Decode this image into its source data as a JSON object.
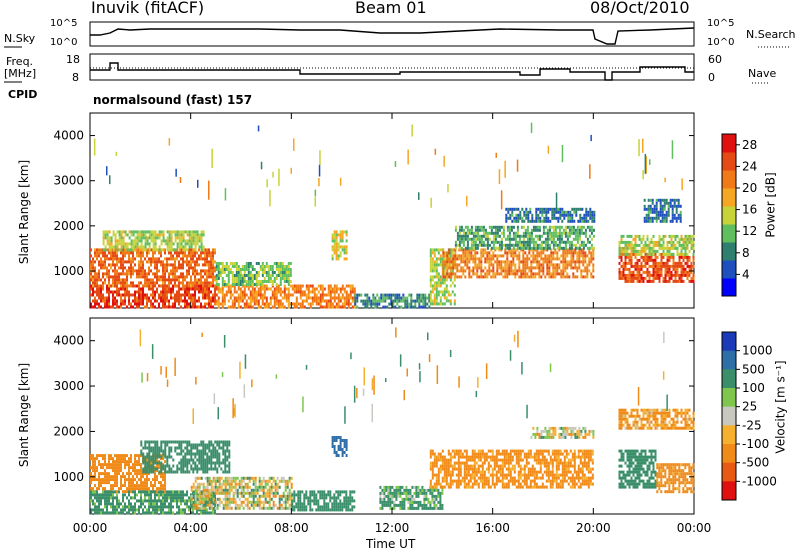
{
  "header": {
    "station": "Inuvik (fitACF)",
    "beam": "Beam 01",
    "date": "08/Oct/2010"
  },
  "status_panel": {
    "nsky_label": "N.Sky",
    "nsearch_label": "N.Search",
    "freq_label_line1": "Freq.",
    "freq_label_line2": "[MHz]",
    "nave_label": "Nave",
    "cpid_label": "CPID",
    "cpid_value": "normalsound (fast) 157",
    "noise_ticks": [
      "10^5",
      "10^0"
    ],
    "freq_ticks": [
      "18",
      "8"
    ],
    "nave_ticks": [
      "60",
      "0"
    ]
  },
  "colors": {
    "power_scale": [
      "#0000ff",
      "#1f4fbf",
      "#2f7f6f",
      "#5fbf5f",
      "#c8d33a",
      "#f5a623",
      "#f07a18",
      "#e64a14",
      "#e01010"
    ],
    "velocity_scale": [
      "#1a3ab8",
      "#2f6fa8",
      "#3a8f6a",
      "#7fc64f",
      "#c8c8c0",
      "#f5b030",
      "#f08a18",
      "#e85a14",
      "#e01010"
    ]
  },
  "chart_data": [
    {
      "type": "heatmap",
      "name": "power",
      "xlabel": "Time UT",
      "ylabel": "Slant Range [km]",
      "x_ticks": [
        "00:00",
        "04:00",
        "08:00",
        "12:00",
        "16:00",
        "20:00",
        "00:00"
      ],
      "y_ticks": [
        1000,
        2000,
        3000,
        4000
      ],
      "ylim": [
        180,
        4500
      ],
      "colorbar_label": "Power [dB]",
      "colorbar_ticks": [
        4,
        8,
        12,
        16,
        20,
        24,
        28
      ],
      "blobs": [
        {
          "t0": 0.0,
          "t1": 5.0,
          "r0": 200,
          "r1": 700,
          "v": 27
        },
        {
          "t0": 0.0,
          "t1": 5.0,
          "r0": 700,
          "r1": 1500,
          "v": 24
        },
        {
          "t0": 0.5,
          "t1": 4.5,
          "r0": 1500,
          "r1": 1900,
          "v": 14
        },
        {
          "t0": 5.0,
          "t1": 10.5,
          "r0": 200,
          "r1": 700,
          "v": 22
        },
        {
          "t0": 5.0,
          "t1": 8.0,
          "r0": 700,
          "r1": 1200,
          "v": 12
        },
        {
          "t0": 9.6,
          "t1": 10.2,
          "r0": 1300,
          "r1": 1900,
          "v": 16
        },
        {
          "t0": 10.5,
          "t1": 13.5,
          "r0": 200,
          "r1": 500,
          "v": 8
        },
        {
          "t0": 13.5,
          "t1": 14.5,
          "r0": 300,
          "r1": 1500,
          "v": 14
        },
        {
          "t0": 14.0,
          "t1": 20.0,
          "r0": 900,
          "r1": 1500,
          "v": 22
        },
        {
          "t0": 14.5,
          "t1": 20.0,
          "r0": 1500,
          "r1": 2000,
          "v": 10
        },
        {
          "t0": 16.5,
          "t1": 20.0,
          "r0": 2100,
          "r1": 2400,
          "v": 6
        },
        {
          "t0": 21.0,
          "t1": 24.0,
          "r0": 800,
          "r1": 1400,
          "v": 26
        },
        {
          "t0": 21.0,
          "t1": 24.0,
          "r0": 1400,
          "r1": 1800,
          "v": 14
        },
        {
          "t0": 22.0,
          "t1": 23.5,
          "r0": 2100,
          "r1": 2600,
          "v": 6
        }
      ]
    },
    {
      "type": "heatmap",
      "name": "velocity",
      "xlabel": "Time UT",
      "ylabel": "Slant Range [km]",
      "x_ticks": [
        "00:00",
        "04:00",
        "08:00",
        "12:00",
        "16:00",
        "20:00",
        "00:00"
      ],
      "y_ticks": [
        1000,
        2000,
        3000,
        4000
      ],
      "ylim": [
        180,
        4500
      ],
      "colorbar_label": "Velocity [m s⁻¹]",
      "colorbar_ticks": [
        "1000",
        "500",
        "100",
        "25",
        "-25",
        "-100",
        "-500",
        "-1000"
      ],
      "blobs": [
        {
          "t0": 0.0,
          "t1": 3.0,
          "r0": 700,
          "r1": 1500,
          "v": -300
        },
        {
          "t0": 0.0,
          "t1": 5.0,
          "r0": 200,
          "r1": 700,
          "v": 200
        },
        {
          "t0": 2.0,
          "t1": 5.5,
          "r0": 1100,
          "r1": 1800,
          "v": 300
        },
        {
          "t0": 4.0,
          "t1": 8.0,
          "r0": 300,
          "r1": 1000,
          "v": 0
        },
        {
          "t0": 8.0,
          "t1": 10.5,
          "r0": 300,
          "r1": 700,
          "v": 300
        },
        {
          "t0": 9.6,
          "t1": 10.2,
          "r0": 1500,
          "r1": 1900,
          "v": 800
        },
        {
          "t0": 11.5,
          "t1": 14.0,
          "r0": 300,
          "r1": 800,
          "v": 150
        },
        {
          "t0": 13.5,
          "t1": 20.0,
          "r0": 800,
          "r1": 1600,
          "v": -200
        },
        {
          "t0": 17.5,
          "t1": 20.0,
          "r0": 1900,
          "r1": 2100,
          "v": 0
        },
        {
          "t0": 21.0,
          "t1": 22.5,
          "r0": 800,
          "r1": 1600,
          "v": 300
        },
        {
          "t0": 22.5,
          "t1": 24.0,
          "r0": 700,
          "r1": 1300,
          "v": -200
        },
        {
          "t0": 21.0,
          "t1": 24.0,
          "r0": 2100,
          "r1": 2500,
          "v": -150
        }
      ]
    }
  ]
}
